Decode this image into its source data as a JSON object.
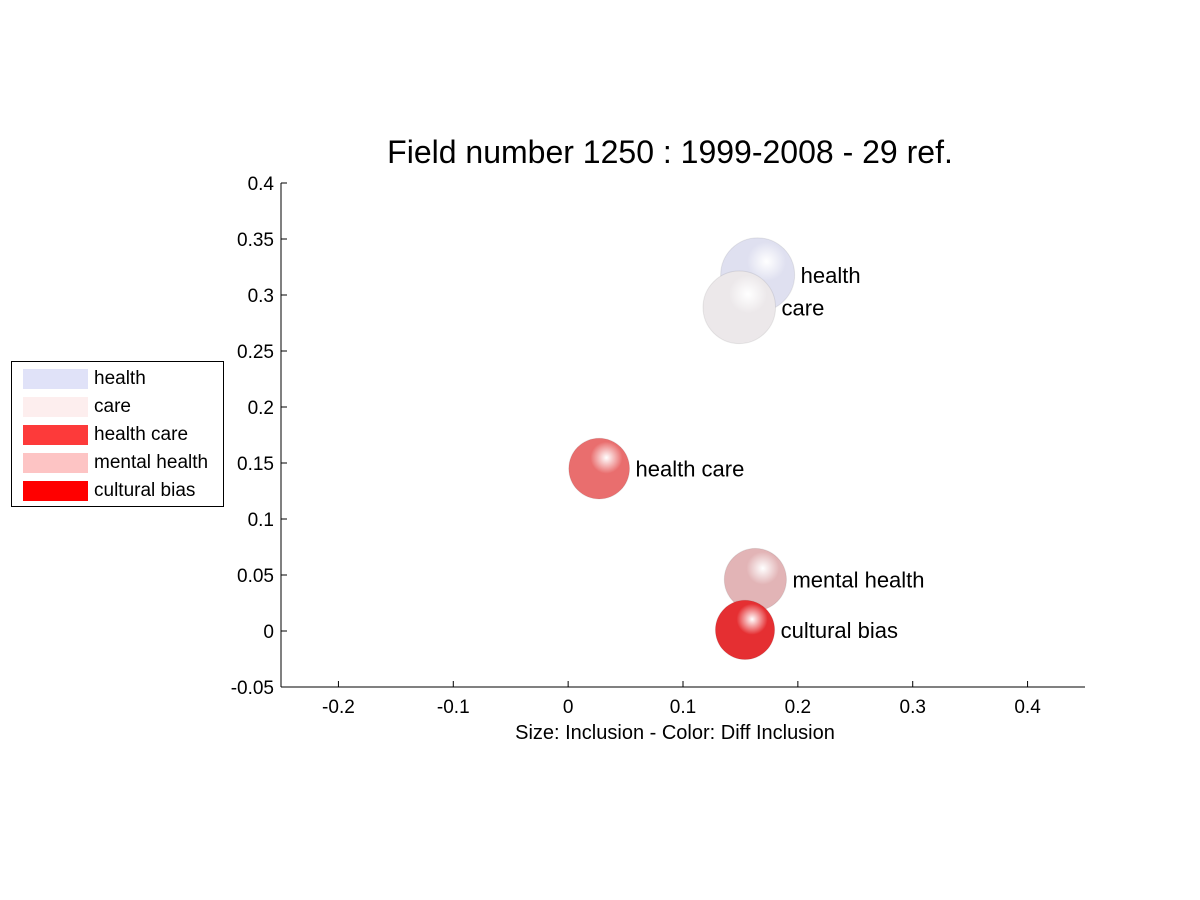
{
  "chart_data": {
    "type": "scatter",
    "title": "Field number 1250 : 1999-2008  - 29 ref.",
    "xlabel": "Size: Inclusion - Color: Diff Inclusion",
    "ylabel": "",
    "xlim": [
      -0.25,
      0.45
    ],
    "ylim": [
      -0.05,
      0.4
    ],
    "x_ticks": [
      "-0.2",
      "-0.1",
      "0",
      "0.1",
      "0.2",
      "0.3",
      "0.4"
    ],
    "y_ticks": [
      "-0.05",
      "0",
      "0.05",
      "0.1",
      "0.15",
      "0.2",
      "0.25",
      "0.3",
      "0.35",
      "0.4"
    ],
    "grid": false,
    "legend_position": "left",
    "points": [
      {
        "label": "health",
        "x": 0.165,
        "y": 0.318,
        "color": "#dfe0f0",
        "size": 1.0
      },
      {
        "label": "care",
        "x": 0.149,
        "y": 0.289,
        "color": "#ece8ea",
        "size": 0.98
      },
      {
        "label": "health care",
        "x": 0.027,
        "y": 0.145,
        "color": "#e96e6e",
        "size": 0.82
      },
      {
        "label": "mental health",
        "x": 0.163,
        "y": 0.046,
        "color": "#e2b4b6",
        "size": 0.84
      },
      {
        "label": "cultural bias",
        "x": 0.154,
        "y": 0.001,
        "color": "#e52f32",
        "size": 0.8
      }
    ],
    "legend": [
      {
        "label": "health",
        "color": "#e0e2f8"
      },
      {
        "label": "care",
        "color": "#fdeeee"
      },
      {
        "label": "health care",
        "color": "#fd3a3a"
      },
      {
        "label": "mental health",
        "color": "#fdc4c4"
      },
      {
        "label": "cultural bias",
        "color": "#ff0000"
      }
    ]
  }
}
